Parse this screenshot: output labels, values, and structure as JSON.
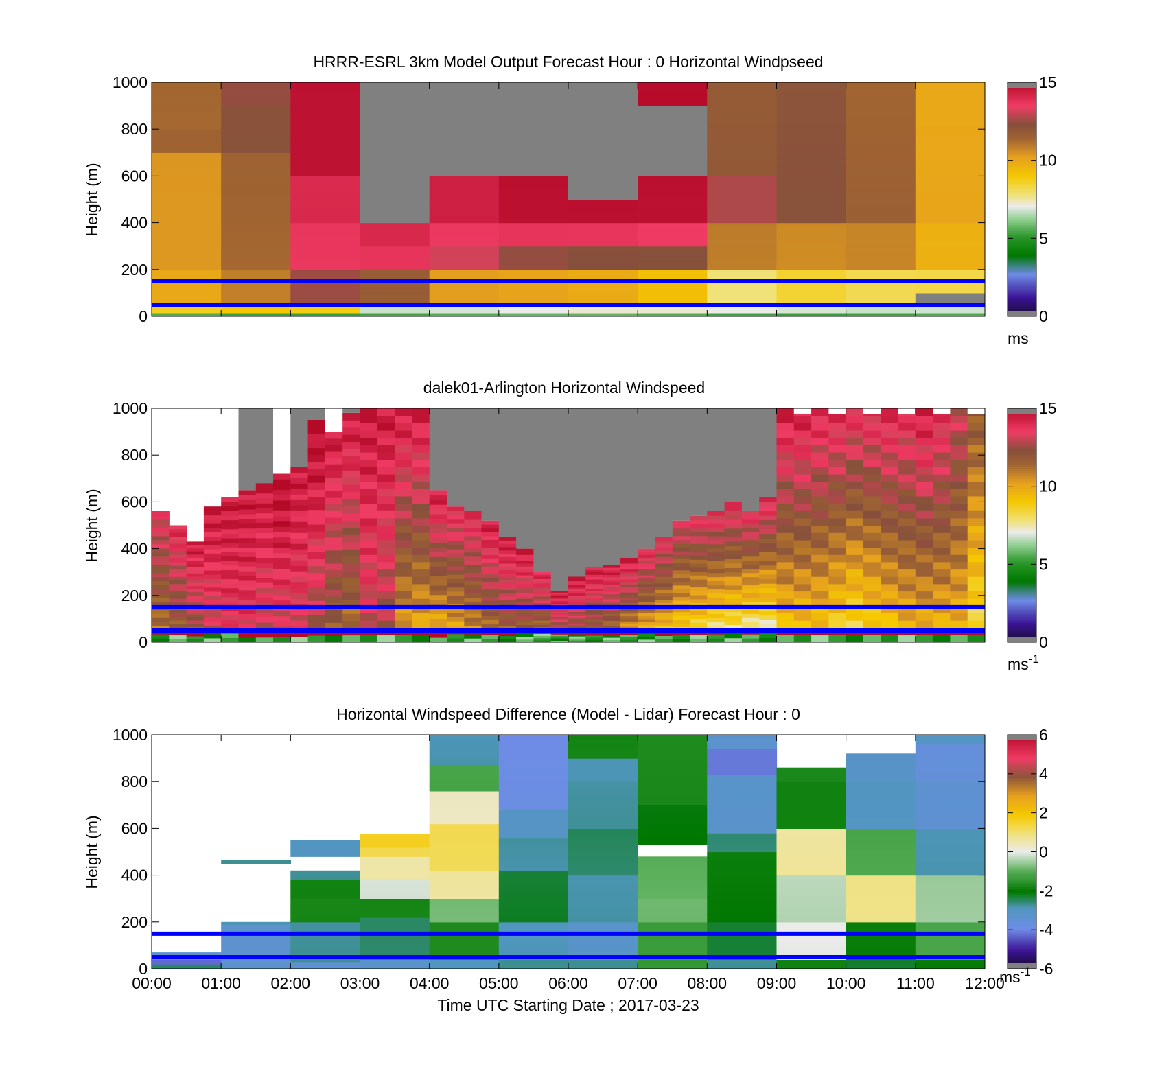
{
  "figure": {
    "xlabel": "Time UTC  Starting Date ; 2017-03-23",
    "xticks": [
      "00:00",
      "01:00",
      "02:00",
      "03:00",
      "04:00",
      "05:00",
      "06:00",
      "07:00",
      "08:00",
      "09:00",
      "10:00",
      "11:00",
      "12:00"
    ],
    "ylabel": "Height (m)",
    "yticks": [
      "0",
      "200",
      "400",
      "600",
      "800",
      "1000"
    ]
  },
  "chart_data": [
    {
      "type": "heatmap",
      "title": "HRRR-ESRL 3km Model Output   Forecast Hour : 0 Horizontal Windpseed",
      "ylabel": "Height (m)",
      "xlim": [
        0,
        12
      ],
      "ylim": [
        0,
        1000
      ],
      "x_unit": "hours UTC",
      "reference_lines_m": [
        50,
        150
      ],
      "colorbar": {
        "min": 0,
        "max": 15,
        "ticks": [
          "0",
          "5",
          "10",
          "15"
        ],
        "unit": "ms"
      },
      "no_data_color": "#808080",
      "x_bins": [
        0,
        1,
        2,
        3,
        4,
        5,
        6,
        7,
        8,
        9,
        10,
        11,
        12
      ],
      "profiles": [
        [
          [
            0,
            15,
            5.5
          ],
          [
            15,
            40,
            8.5
          ],
          [
            40,
            200,
            10.2
          ],
          [
            200,
            700,
            10.6
          ],
          [
            700,
            800,
            11.2
          ],
          [
            800,
            1000,
            11.5
          ]
        ],
        [
          [
            0,
            15,
            5.5
          ],
          [
            15,
            40,
            9
          ],
          [
            40,
            200,
            11
          ],
          [
            200,
            700,
            11.5
          ],
          [
            700,
            900,
            12
          ],
          [
            900,
            1000,
            12.7
          ]
        ],
        [
          [
            0,
            15,
            5.5
          ],
          [
            15,
            40,
            9
          ],
          [
            40,
            200,
            12.5
          ],
          [
            200,
            400,
            13.5
          ],
          [
            400,
            600,
            14
          ],
          [
            600,
            1000,
            15
          ]
        ],
        [
          [
            0,
            15,
            5.5
          ],
          [
            15,
            40,
            7
          ],
          [
            40,
            200,
            11.5
          ],
          [
            200,
            300,
            13.5
          ],
          [
            300,
            400,
            14.2
          ],
          [
            400,
            1000,
            null
          ]
        ],
        [
          [
            0,
            15,
            5.5
          ],
          [
            15,
            40,
            7
          ],
          [
            40,
            200,
            10
          ],
          [
            200,
            300,
            13
          ],
          [
            300,
            400,
            13.5
          ],
          [
            400,
            600,
            14.6
          ],
          [
            600,
            1000,
            null
          ]
        ],
        [
          [
            0,
            15,
            5.5
          ],
          [
            15,
            40,
            7
          ],
          [
            40,
            200,
            10
          ],
          [
            200,
            300,
            12.5
          ],
          [
            300,
            400,
            13.5
          ],
          [
            400,
            600,
            15
          ],
          [
            600,
            1000,
            null
          ]
        ],
        [
          [
            0,
            15,
            5.5
          ],
          [
            15,
            40,
            7
          ],
          [
            40,
            200,
            10
          ],
          [
            200,
            300,
            12.5
          ],
          [
            300,
            400,
            13.5
          ],
          [
            400,
            500,
            14.8
          ],
          [
            500,
            1000,
            null
          ]
        ],
        [
          [
            0,
            15,
            5.5
          ],
          [
            15,
            40,
            7
          ],
          [
            40,
            200,
            9.5
          ],
          [
            200,
            300,
            12.5
          ],
          [
            300,
            400,
            13.5
          ],
          [
            400,
            600,
            14.6
          ],
          [
            600,
            900,
            null
          ],
          [
            900,
            1000,
            15
          ]
        ],
        [
          [
            0,
            15,
            5.5
          ],
          [
            15,
            40,
            7
          ],
          [
            40,
            200,
            8
          ],
          [
            200,
            400,
            11
          ],
          [
            400,
            600,
            12.5
          ],
          [
            600,
            1000,
            12
          ]
        ],
        [
          [
            0,
            15,
            5.5
          ],
          [
            15,
            40,
            7
          ],
          [
            40,
            200,
            8.5
          ],
          [
            200,
            400,
            10.5
          ],
          [
            400,
            1000,
            12
          ]
        ],
        [
          [
            0,
            15,
            5.5
          ],
          [
            15,
            40,
            7
          ],
          [
            40,
            200,
            8
          ],
          [
            200,
            400,
            10.5
          ],
          [
            400,
            1000,
            11.5
          ]
        ],
        [
          [
            0,
            15,
            5.5
          ],
          [
            15,
            40,
            7
          ],
          [
            40,
            100,
            null
          ],
          [
            100,
            200,
            8.5
          ],
          [
            200,
            400,
            9.5
          ],
          [
            400,
            1000,
            10.2
          ]
        ]
      ]
    },
    {
      "type": "heatmap",
      "title": "dalek01-Arlington  Horizontal Windspeed",
      "ylabel": "Height (m)",
      "xlim": [
        0,
        12
      ],
      "ylim": [
        0,
        1000
      ],
      "x_unit": "hours UTC",
      "reference_lines_m": [
        50,
        150
      ],
      "colorbar": {
        "min": 0,
        "max": 15,
        "ticks": [
          "0",
          "5",
          "10",
          "15"
        ],
        "unit": "ms-1"
      },
      "no_data_color": "#808080",
      "time_step_h": 0.25,
      "column_tops_m": [
        560,
        500,
        430,
        580,
        620,
        650,
        680,
        720,
        750,
        950,
        900,
        980,
        1000,
        1000,
        1000,
        1000,
        650,
        580,
        560,
        520,
        450,
        400,
        300,
        220,
        280,
        320,
        330,
        360,
        400,
        450,
        520,
        540,
        560,
        600,
        560,
        620,
        1000,
        1000,
        1000,
        1000,
        1000,
        1000,
        1000,
        1000,
        1000,
        1000,
        1000,
        1000
      ],
      "gray_bottoms_m": [
        null,
        null,
        null,
        null,
        null,
        null,
        null,
        null,
        null,
        null,
        null,
        null,
        null,
        null,
        null,
        null,
        null,
        null,
        null,
        null,
        null,
        null,
        null,
        null,
        null,
        null,
        null,
        null,
        null,
        null,
        null,
        null,
        null,
        null,
        null,
        null,
        null,
        null,
        null,
        null,
        null,
        null,
        null,
        null,
        null,
        null,
        null,
        null
      ],
      "surface_speed_ms": [
        11,
        11.5,
        12,
        13,
        13.5,
        13.5,
        13,
        13,
        13.2,
        12.5,
        11.5,
        11,
        13,
        12.5,
        10,
        9.8,
        9.5,
        9.8,
        10.5,
        11,
        11.5,
        11.5,
        11,
        12,
        12,
        11.5,
        11,
        10,
        9.5,
        9,
        8.5,
        8,
        7.5,
        7.5,
        7,
        7,
        9,
        9,
        9,
        8.5,
        8,
        8.5,
        9,
        9.5,
        9.5,
        9.5,
        9.5,
        8
      ],
      "top_speed_ms": [
        13.5,
        14,
        14.5,
        14.5,
        14.5,
        14.5,
        14.5,
        15,
        14.5,
        15,
        14.5,
        14.5,
        14.5,
        14.5,
        14.5,
        14.5,
        14.5,
        14,
        14,
        14.5,
        14.5,
        14.5,
        14.2,
        14.5,
        14.5,
        14.5,
        14.5,
        14.5,
        14,
        13.8,
        13.5,
        13.8,
        14,
        14,
        14,
        14.2,
        14.5,
        14.5,
        14.2,
        14.2,
        14,
        14,
        14.2,
        14,
        14.5,
        14,
        13.2,
        12
      ]
    },
    {
      "type": "heatmap",
      "title": "Horizontal Windspeed Difference (Model - Lidar) Forecast Hour : 0",
      "ylabel": "Height (m)",
      "xlim": [
        0,
        12
      ],
      "ylim": [
        0,
        1000
      ],
      "x_unit": "hours UTC",
      "reference_lines_m": [
        50,
        150
      ],
      "colorbar": {
        "min": -6,
        "max": 6,
        "ticks": [
          "-6",
          "-4",
          "-2",
          "0",
          "2",
          "4",
          "6"
        ],
        "unit": "ms-1"
      },
      "profiles": [
        [
          [
            0,
            20,
            -2.5
          ],
          [
            20,
            40,
            -4
          ],
          [
            40,
            70,
            -3
          ],
          [
            70,
            1000,
            null
          ]
        ],
        [
          [
            0,
            20,
            -3
          ],
          [
            20,
            190,
            -3
          ],
          [
            190,
            200,
            -3
          ],
          [
            200,
            450,
            null
          ],
          [
            450,
            465,
            -3
          ],
          [
            465,
            1000,
            null
          ]
        ],
        [
          [
            0,
            30,
            -3
          ],
          [
            30,
            200,
            -2.8
          ],
          [
            200,
            300,
            -2
          ],
          [
            300,
            380,
            -1.5
          ],
          [
            380,
            420,
            -3
          ],
          [
            420,
            480,
            null
          ],
          [
            480,
            550,
            -3
          ],
          [
            550,
            1000,
            null
          ]
        ],
        [
          [
            0,
            40,
            -3
          ],
          [
            40,
            220,
            -2.8
          ],
          [
            220,
            300,
            -2
          ],
          [
            300,
            380,
            0
          ],
          [
            380,
            480,
            0.5
          ],
          [
            480,
            520,
            1
          ],
          [
            520,
            575,
            1.5
          ],
          [
            575,
            1000,
            null
          ]
        ],
        [
          [
            0,
            40,
            -3
          ],
          [
            40,
            200,
            -2
          ],
          [
            200,
            300,
            -1
          ],
          [
            300,
            420,
            0.5
          ],
          [
            420,
            620,
            1.5
          ],
          [
            620,
            760,
            0
          ],
          [
            760,
            870,
            -1.5
          ],
          [
            870,
            1000,
            -3
          ]
        ],
        [
          [
            0,
            40,
            -3
          ],
          [
            40,
            200,
            -3
          ],
          [
            200,
            420,
            -2.2
          ],
          [
            420,
            560,
            -2.8
          ],
          [
            560,
            680,
            -3
          ],
          [
            680,
            780,
            -3.5
          ],
          [
            780,
            900,
            -4
          ],
          [
            900,
            1000,
            -4.3
          ]
        ],
        [
          [
            0,
            40,
            -3
          ],
          [
            40,
            200,
            -3
          ],
          [
            200,
            400,
            -2.5
          ],
          [
            400,
            600,
            -2.5
          ],
          [
            600,
            800,
            -3
          ],
          [
            800,
            900,
            -2.5
          ],
          [
            900,
            1000,
            -2
          ]
        ],
        [
          [
            0,
            40,
            -1.5
          ],
          [
            40,
            200,
            -1
          ],
          [
            200,
            300,
            -0.5
          ],
          [
            300,
            480,
            -1
          ],
          [
            480,
            530,
            null
          ],
          [
            530,
            700,
            -2
          ],
          [
            700,
            1000,
            -2
          ]
        ],
        [
          [
            0,
            40,
            -2.5
          ],
          [
            40,
            200,
            -2
          ],
          [
            200,
            500,
            -1.8
          ],
          [
            500,
            580,
            -2.5
          ],
          [
            580,
            700,
            -3.2
          ],
          [
            700,
            830,
            -3.5
          ],
          [
            830,
            940,
            -3.8
          ],
          [
            940,
            1000,
            -3.2
          ]
        ],
        [
          [
            0,
            40,
            -1.5
          ],
          [
            40,
            200,
            0
          ],
          [
            200,
            400,
            -0.5
          ],
          [
            400,
            600,
            0.5
          ],
          [
            600,
            800,
            -1.5
          ],
          [
            800,
            860,
            -2
          ],
          [
            860,
            1000,
            null
          ]
        ],
        [
          [
            0,
            40,
            -2
          ],
          [
            40,
            200,
            -2.2
          ],
          [
            200,
            400,
            0.5
          ],
          [
            400,
            600,
            -1
          ],
          [
            600,
            800,
            -2.8
          ],
          [
            800,
            920,
            -3.5
          ],
          [
            920,
            1000,
            null
          ]
        ],
        [
          [
            0,
            40,
            -2
          ],
          [
            40,
            200,
            -1.5
          ],
          [
            200,
            400,
            -0.8
          ],
          [
            400,
            600,
            -2.5
          ],
          [
            600,
            800,
            -3.5
          ],
          [
            800,
            960,
            -3.8
          ],
          [
            960,
            1000,
            -3
          ]
        ]
      ]
    }
  ]
}
